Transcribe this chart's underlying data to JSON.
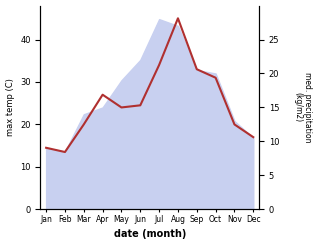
{
  "months": [
    "Jan",
    "Feb",
    "Mar",
    "Apr",
    "May",
    "Jun",
    "Jul",
    "Aug",
    "Sep",
    "Oct",
    "Nov",
    "Dec"
  ],
  "month_positions": [
    0,
    1,
    2,
    3,
    4,
    5,
    6,
    7,
    8,
    9,
    10,
    11
  ],
  "temperature": [
    14.5,
    13.5,
    20.0,
    27.0,
    24.0,
    24.5,
    34.0,
    45.0,
    33.0,
    31.0,
    20.0,
    17.0
  ],
  "precipitation": [
    9.0,
    8.5,
    14.0,
    15.0,
    19.0,
    22.0,
    28.0,
    27.0,
    20.5,
    20.0,
    13.0,
    10.5
  ],
  "temp_color": "#b03030",
  "precip_fill_color": "#c8d0f0",
  "ylabel_left": "max temp (C)",
  "ylabel_right": "med. precipitation\n(kg/m2)",
  "xlabel": "date (month)",
  "ylim_left": [
    0,
    48
  ],
  "ylim_right": [
    0,
    30
  ],
  "yticks_left": [
    0,
    10,
    20,
    30,
    40
  ],
  "yticks_right": [
    0,
    5,
    10,
    15,
    20,
    25
  ],
  "bg_color": "#ffffff"
}
